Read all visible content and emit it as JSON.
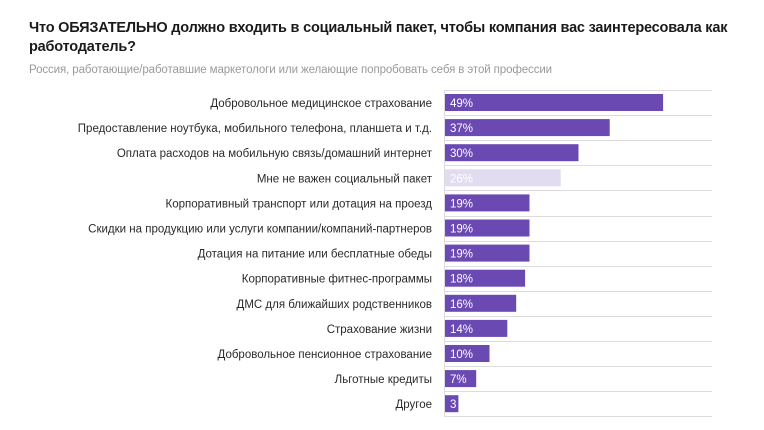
{
  "chart_data": {
    "type": "bar",
    "orientation": "horizontal",
    "title": "Что ОБЯЗАТЕЛЬНО должно входить в социальный пакет, чтобы компания вас заинтересовала как работодатель?",
    "subtitle": "Россия, работающие/работавшие маркетологи или желающие попробовать себя в этой профессии",
    "xlabel": "",
    "ylabel": "",
    "xlim": [
      0,
      60
    ],
    "grid": true,
    "categories": [
      "Добровольное медицинское страхование",
      "Предоставление ноутбука, мобильного телефона, планшета и т.д.",
      "Оплата расходов на мобильную связь/домашний интернет",
      "Мне не важен социальный пакет",
      "Корпоративный транспорт или дотация на проезд",
      "Скидки на продукцию или услуги компании/компаний-партнеров",
      "Дотация на питание или бесплатные обеды",
      "Корпоративные фитнес-программы",
      "ДМС для ближайших родственников",
      "Страхование жизни",
      "Добровольное пенсионное страхование",
      "Льготные кредиты",
      "Другое"
    ],
    "values": [
      49,
      37,
      30,
      26,
      19,
      19,
      19,
      18,
      16,
      14,
      10,
      7,
      3
    ],
    "value_labels": [
      "49%",
      "37%",
      "30%",
      "26%",
      "19%",
      "19%",
      "19%",
      "18%",
      "16%",
      "14%",
      "10%",
      "7%",
      "3"
    ],
    "highlight": [
      false,
      false,
      false,
      true,
      false,
      false,
      false,
      false,
      false,
      false,
      false,
      false,
      false
    ],
    "colors": {
      "bar": "#6a49b3",
      "bar_muted": "#e2dcf0",
      "grid": "#dcdce0",
      "text": "#2a2a2a"
    }
  }
}
